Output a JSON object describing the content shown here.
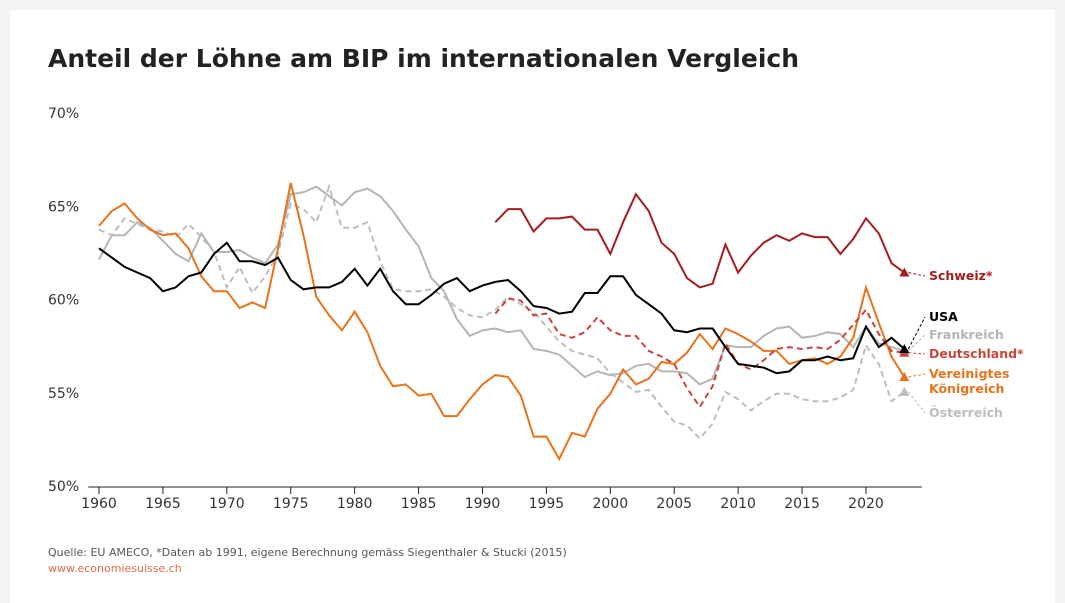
{
  "chart_data": {
    "type": "line",
    "title": "Anteil der Löhne am BIP im internationalen Vergleich",
    "source": "Quelle: EU AMECO, *Daten ab 1991, eigene Berechnung gemäss Siegenthaler & Stucki (2015)",
    "url": "www.economiesuisse.ch",
    "x": [
      1960,
      1961,
      1962,
      1963,
      1964,
      1965,
      1966,
      1967,
      1968,
      1969,
      1970,
      1971,
      1972,
      1973,
      1974,
      1975,
      1976,
      1977,
      1978,
      1979,
      1980,
      1981,
      1982,
      1983,
      1984,
      1985,
      1986,
      1987,
      1988,
      1989,
      1990,
      1991,
      1992,
      1993,
      1994,
      1995,
      1996,
      1997,
      1998,
      1999,
      2000,
      2001,
      2002,
      2003,
      2004,
      2005,
      2006,
      2007,
      2008,
      2009,
      2010,
      2011,
      2012,
      2013,
      2014,
      2015,
      2016,
      2017,
      2018,
      2019,
      2020,
      2021,
      2022,
      2023
    ],
    "xlim": [
      1959,
      2025
    ],
    "xticks": [
      1960,
      1965,
      1970,
      1975,
      1980,
      1985,
      1990,
      1995,
      2000,
      2005,
      2010,
      2015,
      2020
    ],
    "ylim": [
      50,
      70
    ],
    "yticks": [
      {
        "value": 50,
        "label": "50%"
      },
      {
        "value": 55,
        "label": "55%"
      },
      {
        "value": 60,
        "label": "60%"
      },
      {
        "value": 65,
        "label": "65%"
      },
      {
        "value": 70,
        "label": "70%"
      }
    ],
    "series": [
      {
        "name": "Frankreich",
        "color": "#b5b5b5",
        "dashed": false,
        "values": [
          62.2,
          63.5,
          63.5,
          64.2,
          63.9,
          63.2,
          62.5,
          62.1,
          63.6,
          62.6,
          62.6,
          62.7,
          62.3,
          62.0,
          63.0,
          65.7,
          65.8,
          66.1,
          65.6,
          65.1,
          65.8,
          66.0,
          65.6,
          64.8,
          63.8,
          62.9,
          61.2,
          60.5,
          59.0,
          58.1,
          58.4,
          58.5,
          58.3,
          58.4,
          57.4,
          57.3,
          57.1,
          56.5,
          55.9,
          56.2,
          56.0,
          56.1,
          56.5,
          56.6,
          56.2,
          56.2,
          56.1,
          55.5,
          55.8,
          57.6,
          57.5,
          57.5,
          58.1,
          58.5,
          58.6,
          58.0,
          58.1,
          58.3,
          58.2,
          57.5,
          58.6,
          57.7,
          57.5,
          57.3
        ]
      },
      {
        "name": "Österreich",
        "color": "#bdbdbd",
        "dashed": true,
        "values": [
          63.8,
          63.5,
          64.4,
          64.1,
          63.8,
          63.7,
          63.4,
          64.1,
          63.4,
          62.6,
          60.7,
          61.8,
          60.4,
          61.3,
          62.5,
          65.2,
          64.9,
          64.2,
          66.1,
          63.9,
          63.9,
          64.2,
          62.1,
          60.6,
          60.5,
          60.5,
          60.6,
          60.2,
          59.6,
          59.2,
          59.1,
          59.5,
          60.2,
          59.8,
          59.4,
          58.6,
          57.8,
          57.3,
          57.1,
          56.9,
          56.1,
          55.6,
          55.1,
          55.2,
          54.3,
          53.5,
          53.3,
          52.6,
          53.4,
          55.1,
          54.7,
          54.1,
          54.6,
          55.0,
          55.0,
          54.7,
          54.6,
          54.6,
          54.8,
          55.2,
          57.6,
          56.6,
          54.6,
          55.1
        ]
      },
      {
        "name": "Vereinigtes Königreich",
        "color": "#e8731a",
        "dashed": false,
        "values": [
          64.0,
          64.8,
          65.2,
          64.4,
          63.8,
          63.5,
          63.6,
          62.8,
          61.3,
          60.5,
          60.5,
          59.6,
          59.9,
          59.6,
          62.8,
          66.3,
          63.5,
          60.2,
          59.2,
          58.4,
          59.4,
          58.3,
          56.5,
          55.4,
          55.5,
          54.9,
          55.0,
          53.8,
          53.8,
          54.7,
          55.5,
          56.0,
          55.9,
          54.9,
          52.7,
          52.7,
          51.5,
          52.9,
          52.7,
          54.2,
          55.0,
          56.3,
          55.5,
          55.8,
          56.7,
          56.6,
          57.2,
          58.2,
          57.4,
          58.5,
          58.2,
          57.8,
          57.3,
          57.3,
          56.6,
          56.8,
          56.9,
          56.6,
          57.0,
          58.0,
          60.7,
          58.8,
          57.0,
          55.9
        ]
      },
      {
        "name": "Deutschland*",
        "color": "#c8453c",
        "dashed": true,
        "values": [
          null,
          null,
          null,
          null,
          null,
          null,
          null,
          null,
          null,
          null,
          null,
          null,
          null,
          null,
          null,
          null,
          null,
          null,
          null,
          null,
          null,
          null,
          null,
          null,
          null,
          null,
          null,
          null,
          null,
          null,
          null,
          59.3,
          60.1,
          60.0,
          59.2,
          59.3,
          58.2,
          58.0,
          58.3,
          59.1,
          58.4,
          58.1,
          58.1,
          57.3,
          57.0,
          56.6,
          55.3,
          54.3,
          55.4,
          57.7,
          56.6,
          56.3,
          56.8,
          57.4,
          57.5,
          57.4,
          57.5,
          57.4,
          57.9,
          58.7,
          59.5,
          58.2,
          57.3,
          57.2
        ]
      },
      {
        "name": "USA",
        "color": "#000000",
        "dashed": false,
        "values": [
          62.8,
          62.3,
          61.8,
          61.5,
          61.2,
          60.5,
          60.7,
          61.3,
          61.5,
          62.5,
          63.1,
          62.1,
          62.1,
          61.9,
          62.3,
          61.1,
          60.6,
          60.7,
          60.7,
          61.0,
          61.7,
          60.8,
          61.7,
          60.5,
          59.8,
          59.8,
          60.3,
          60.9,
          61.2,
          60.5,
          60.8,
          61.0,
          61.1,
          60.5,
          59.7,
          59.6,
          59.3,
          59.4,
          60.4,
          60.4,
          61.3,
          61.3,
          60.3,
          59.8,
          59.3,
          58.4,
          58.3,
          58.5,
          58.5,
          57.5,
          56.6,
          56.5,
          56.4,
          56.1,
          56.2,
          56.8,
          56.8,
          57.0,
          56.8,
          56.9,
          58.6,
          57.5,
          58.0,
          57.4
        ]
      },
      {
        "name": "Schweiz*",
        "color": "#a51c1f",
        "dashed": false,
        "values": [
          null,
          null,
          null,
          null,
          null,
          null,
          null,
          null,
          null,
          null,
          null,
          null,
          null,
          null,
          null,
          null,
          null,
          null,
          null,
          null,
          null,
          null,
          null,
          null,
          null,
          null,
          null,
          null,
          null,
          null,
          null,
          64.2,
          64.9,
          64.9,
          63.7,
          64.4,
          64.4,
          64.5,
          63.8,
          63.8,
          62.5,
          64.2,
          65.7,
          64.8,
          63.1,
          62.5,
          61.2,
          60.7,
          60.9,
          63.0,
          61.5,
          62.4,
          63.1,
          63.5,
          63.2,
          63.6,
          63.4,
          63.4,
          62.5,
          63.3,
          64.4,
          63.6,
          62.0,
          61.5
        ]
      }
    ]
  }
}
